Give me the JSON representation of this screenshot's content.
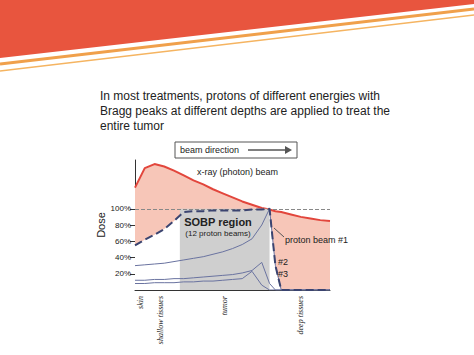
{
  "chart_data": {
    "type": "line",
    "title": "In most treatments, protons of different energies with Bragg peaks at different depths are applied to treat the entire tumor",
    "ylabel": "Dose",
    "annotations": [
      "beam direction",
      "SOBP region",
      "(12 proton beams)"
    ],
    "x": [
      0,
      5,
      10,
      15,
      20,
      25,
      30,
      35,
      40,
      45,
      50,
      55,
      60,
      65,
      69,
      72,
      75,
      80,
      85,
      90,
      95,
      100
    ],
    "series": [
      {
        "name": "x-ray (photon) beam",
        "color": "#e2463c",
        "values": [
          126,
          150,
          155,
          152,
          147,
          141,
          135,
          130,
          124,
          119,
          114,
          109,
          105,
          101,
          99,
          97,
          96,
          93,
          90,
          88,
          86,
          85
        ]
      },
      {
        "color": "#3b4470",
        "line_style": "dashed",
        "values": [
          55,
          62,
          68,
          75,
          85,
          96,
          97,
          97,
          98,
          98,
          98,
          98,
          99,
          99,
          100,
          30,
          0,
          0,
          0,
          0,
          0,
          0
        ]
      },
      {
        "name": "proton beam #1",
        "color": "#6a73a0",
        "values": [
          30,
          31,
          32,
          33,
          35,
          37,
          39,
          41,
          44,
          47,
          51,
          56,
          63,
          80,
          100,
          30,
          0,
          0,
          0,
          0,
          0,
          0
        ]
      },
      {
        "name": "#2",
        "color": "#6a73a0",
        "values": [
          12,
          12,
          13,
          13,
          14,
          14,
          15,
          16,
          17,
          18,
          19,
          21,
          24,
          34,
          8,
          0,
          0,
          0,
          0,
          0,
          0,
          0
        ]
      },
      {
        "name": "#3",
        "color": "#6a73a0",
        "values": [
          8,
          8,
          9,
          9,
          9,
          10,
          10,
          11,
          11,
          12,
          13,
          14,
          23,
          6,
          0,
          0,
          0,
          0,
          0,
          0,
          0,
          0
        ]
      }
    ],
    "xlim": [
      0,
      100
    ],
    "xticks": [
      {
        "value": 3,
        "label": "skin"
      },
      {
        "value": 13,
        "label": "shallow tissues"
      },
      {
        "value": 46,
        "label": "tumor"
      },
      {
        "value": 85,
        "label": "deep tissues"
      }
    ],
    "ylim": [
      0,
      160
    ],
    "yticks": [
      {
        "value": 20,
        "label": "20%"
      },
      {
        "value": 40,
        "label": "40%"
      },
      {
        "value": 60,
        "label": "60%"
      },
      {
        "value": 80,
        "label": "80%"
      },
      {
        "value": 100,
        "label": "100%"
      }
    ],
    "sobp_region": [
      23,
      69
    ],
    "reference_line": 100,
    "grid": false
  }
}
